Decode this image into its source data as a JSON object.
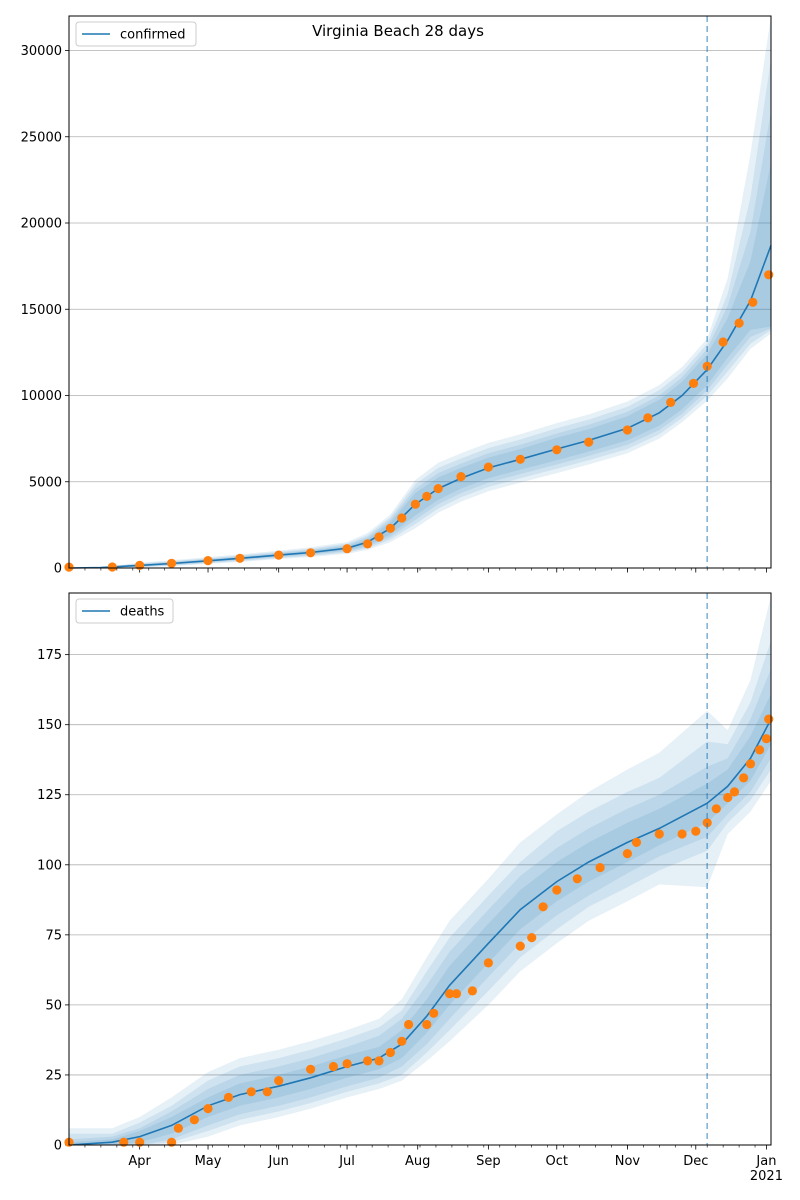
{
  "figure": {
    "title": "Virginia Beach 28 days",
    "colors": {
      "model_line": "#1f77b4",
      "observed": "#ff7f0e",
      "band": "#1f77b4",
      "grid": "#b0b0b0",
      "vline": "#1f77b4"
    }
  },
  "chart_data": [
    {
      "type": "line",
      "legend": "confirmed",
      "legend_position": "upper-left",
      "grid": "y",
      "x_axis": {
        "type": "date",
        "range": [
          "2020-03-01",
          "2021-01-03"
        ],
        "ticks": [
          {
            "date": "2020-04-01",
            "label": "Apr"
          },
          {
            "date": "2020-05-01",
            "label": "May"
          },
          {
            "date": "2020-06-01",
            "label": "Jun"
          },
          {
            "date": "2020-07-01",
            "label": "Jul"
          },
          {
            "date": "2020-08-01",
            "label": "Aug"
          },
          {
            "date": "2020-09-01",
            "label": "Sep"
          },
          {
            "date": "2020-10-01",
            "label": "Oct"
          },
          {
            "date": "2020-11-01",
            "label": "Nov"
          },
          {
            "date": "2020-12-01",
            "label": "Dec"
          },
          {
            "date": "2021-01-01",
            "label": "Jan\n2021"
          }
        ]
      },
      "ylim": [
        0,
        32000
      ],
      "yticks": [
        0,
        5000,
        10000,
        15000,
        20000,
        25000,
        30000
      ],
      "forecast_start": "2020-12-06",
      "model": {
        "x": [
          "2020-03-01",
          "2020-03-15",
          "2020-04-01",
          "2020-04-15",
          "2020-05-01",
          "2020-05-15",
          "2020-06-01",
          "2020-06-15",
          "2020-07-01",
          "2020-07-10",
          "2020-07-20",
          "2020-07-31",
          "2020-08-10",
          "2020-08-20",
          "2020-09-01",
          "2020-09-15",
          "2020-10-01",
          "2020-10-15",
          "2020-11-01",
          "2020-11-15",
          "2020-11-25",
          "2020-12-06",
          "2020-12-15",
          "2020-12-25",
          "2021-01-03"
        ],
        "y": [
          0,
          30,
          150,
          260,
          420,
          560,
          750,
          900,
          1150,
          1500,
          2300,
          3700,
          4600,
          5200,
          5800,
          6300,
          6900,
          7400,
          8100,
          9000,
          10000,
          11500,
          13200,
          15500,
          18700
        ],
        "bands": [
          {
            "lower": [
              0,
              20,
              100,
              200,
              360,
              490,
              670,
              810,
              1030,
              1320,
              1950,
              3050,
              3950,
              4600,
              5200,
              5700,
              6250,
              6750,
              7400,
              8250,
              9200,
              10600,
              12200,
              13800,
              14000
            ],
            "upper": [
              0,
              40,
              200,
              320,
              480,
              630,
              830,
              990,
              1270,
              1680,
              2650,
              4350,
              5250,
              5800,
              6400,
              6900,
              7550,
              8050,
              8800,
              9750,
              10800,
              12400,
              14500,
              17800,
              23500
            ]
          },
          {
            "lower": [
              0,
              15,
              80,
              170,
              320,
              450,
              620,
              760,
              970,
              1230,
              1800,
              2800,
              3700,
              4350,
              4950,
              5450,
              6000,
              6500,
              7150,
              8000,
              8950,
              10300,
              11800,
              13400,
              13900
            ],
            "upper": [
              0,
              45,
              230,
              360,
              520,
              680,
              880,
              1050,
              1340,
              1790,
              2800,
              4600,
              5500,
              6050,
              6650,
              7150,
              7800,
              8300,
              9050,
              10000,
              11050,
              12700,
              15200,
              19500,
              26500
            ]
          },
          {
            "lower": [
              0,
              10,
              60,
              140,
              280,
              400,
              570,
              700,
              900,
              1140,
              1650,
              2550,
              3450,
              4100,
              4700,
              5200,
              5750,
              6250,
              6900,
              7750,
              8700,
              10000,
              11400,
              13000,
              13800
            ],
            "upper": [
              0,
              50,
              260,
              400,
              570,
              730,
              940,
              1120,
              1420,
              1900,
              2950,
              4850,
              5800,
              6350,
              6950,
              7450,
              8100,
              8600,
              9350,
              10300,
              11350,
              13000,
              15900,
              21500,
              29500
            ]
          },
          {
            "lower": [
              0,
              5,
              40,
              110,
              240,
              350,
              520,
              640,
              830,
              1050,
              1500,
              2300,
              3200,
              3850,
              4450,
              4950,
              5500,
              6000,
              6650,
              7500,
              8450,
              9700,
              11000,
              12700,
              13600
            ],
            "upper": [
              0,
              60,
              300,
              450,
              630,
              790,
              1010,
              1200,
              1510,
              2030,
              3100,
              5100,
              6100,
              6650,
              7250,
              7750,
              8400,
              8900,
              9650,
              10600,
              11650,
              13300,
              16800,
              24000,
              32000
            ]
          }
        ]
      },
      "observed": {
        "x": [
          "2020-03-01",
          "2020-03-20",
          "2020-04-01",
          "2020-04-15",
          "2020-05-01",
          "2020-05-15",
          "2020-06-01",
          "2020-06-15",
          "2020-07-01",
          "2020-07-10",
          "2020-07-15",
          "2020-07-20",
          "2020-07-25",
          "2020-07-31",
          "2020-08-05",
          "2020-08-10",
          "2020-08-20",
          "2020-09-01",
          "2020-09-15",
          "2020-10-01",
          "2020-10-15",
          "2020-11-01",
          "2020-11-10",
          "2020-11-20",
          "2020-11-30",
          "2020-12-06",
          "2020-12-13",
          "2020-12-20",
          "2020-12-26",
          "2021-01-02"
        ],
        "y": [
          50,
          60,
          150,
          270,
          430,
          560,
          750,
          880,
          1120,
          1400,
          1800,
          2300,
          2900,
          3700,
          4150,
          4600,
          5300,
          5850,
          6300,
          6850,
          7300,
          8000,
          8700,
          9600,
          10700,
          11700,
          13100,
          14200,
          15400,
          17000
        ]
      }
    },
    {
      "type": "line",
      "legend": "deaths",
      "legend_position": "upper-left",
      "grid": "y",
      "x_axis": {
        "type": "date",
        "range": [
          "2020-03-01",
          "2021-01-03"
        ],
        "ticks": [
          {
            "date": "2020-04-01",
            "label": "Apr"
          },
          {
            "date": "2020-05-01",
            "label": "May"
          },
          {
            "date": "2020-06-01",
            "label": "Jun"
          },
          {
            "date": "2020-07-01",
            "label": "Jul"
          },
          {
            "date": "2020-08-01",
            "label": "Aug"
          },
          {
            "date": "2020-09-01",
            "label": "Sep"
          },
          {
            "date": "2020-10-01",
            "label": "Oct"
          },
          {
            "date": "2020-11-01",
            "label": "Nov"
          },
          {
            "date": "2020-12-01",
            "label": "Dec"
          },
          {
            "date": "2021-01-01",
            "label": "Jan\n2021"
          }
        ]
      },
      "ylim": [
        0,
        197
      ],
      "yticks": [
        0,
        25,
        50,
        75,
        100,
        125,
        150,
        175
      ],
      "forecast_start": "2020-12-06",
      "model": {
        "x": [
          "2020-03-01",
          "2020-03-20",
          "2020-04-01",
          "2020-04-15",
          "2020-05-01",
          "2020-05-15",
          "2020-06-01",
          "2020-06-15",
          "2020-07-01",
          "2020-07-15",
          "2020-07-25",
          "2020-08-05",
          "2020-08-15",
          "2020-09-01",
          "2020-09-15",
          "2020-10-01",
          "2020-10-15",
          "2020-11-01",
          "2020-11-15",
          "2020-12-06",
          "2020-12-15",
          "2020-12-25",
          "2021-01-03"
        ],
        "y": [
          0,
          1,
          3,
          7,
          14,
          18,
          21,
          24,
          28,
          31,
          36,
          46,
          57,
          72,
          84,
          94,
          101,
          108,
          113,
          122,
          128,
          138,
          152
        ],
        "bands": [
          {
            "lower": [
              0,
              0,
              1,
              4,
              10,
              14,
              17,
              20,
              24,
              27,
              31,
              40,
              50,
              65,
              77,
              87,
              94,
              101,
              107,
              115,
              122,
              130,
              143
            ],
            "upper": [
              1,
              2,
              5,
              10,
              17,
              22,
              25,
              28,
              32,
              35,
              41,
              52,
              64,
              79,
              91,
              101,
              108,
              115,
              120,
              129,
              134,
              146,
              161
            ]
          },
          {
            "lower": [
              0,
              0,
              0,
              2,
              7,
              11,
              14,
              17,
              21,
              24,
              28,
              36,
              45,
              60,
              72,
              82,
              89,
              97,
              103,
              110,
              118,
              126,
              138
            ],
            "upper": [
              2,
              3,
              6,
              12,
              20,
              25,
              28,
              31,
              35,
              39,
              45,
              57,
              69,
              84,
              96,
              106,
              113,
              120,
              125,
              135,
              138,
              152,
              170
            ]
          },
          {
            "lower": [
              0,
              0,
              0,
              1,
              5,
              9,
              12,
              15,
              19,
              22,
              25,
              33,
              41,
              55,
              67,
              77,
              85,
              92,
              98,
              105,
              115,
              123,
              134
            ],
            "upper": [
              4,
              4,
              8,
              14,
              23,
              28,
              31,
              34,
              38,
              42,
              48,
              62,
              74,
              89,
              101,
              112,
              119,
              126,
              131,
              144,
              143,
              158,
              180
            ]
          },
          {
            "lower": [
              0,
              0,
              0,
              0,
              3,
              7,
              10,
              13,
              17,
              20,
              23,
              30,
              37,
              50,
              62,
              72,
              80,
              87,
              93,
              92,
              111,
              119,
              130
            ],
            "upper": [
              6,
              6,
              10,
              17,
              26,
              31,
              34,
              37,
              41,
              45,
              52,
              67,
              80,
              95,
              108,
              118,
              126,
              134,
              140,
              155,
              148,
              166,
              196
            ]
          }
        ]
      },
      "observed": {
        "x": [
          "2020-03-01",
          "2020-03-25",
          "2020-04-01",
          "2020-04-15",
          "2020-04-18",
          "2020-04-25",
          "2020-05-01",
          "2020-05-10",
          "2020-05-20",
          "2020-05-27",
          "2020-06-01",
          "2020-06-15",
          "2020-06-25",
          "2020-07-01",
          "2020-07-10",
          "2020-07-15",
          "2020-07-20",
          "2020-07-25",
          "2020-07-28",
          "2020-08-05",
          "2020-08-08",
          "2020-08-15",
          "2020-08-18",
          "2020-08-25",
          "2020-09-01",
          "2020-09-15",
          "2020-09-20",
          "2020-09-25",
          "2020-10-01",
          "2020-10-10",
          "2020-10-20",
          "2020-11-01",
          "2020-11-05",
          "2020-11-15",
          "2020-11-25",
          "2020-12-01",
          "2020-12-06",
          "2020-12-10",
          "2020-12-15",
          "2020-12-18",
          "2020-12-22",
          "2020-12-25",
          "2020-12-29",
          "2021-01-01",
          "2021-01-02"
        ],
        "y": [
          1,
          1,
          1,
          1,
          6,
          9,
          13,
          17,
          19,
          19,
          23,
          27,
          28,
          29,
          30,
          30,
          33,
          37,
          43,
          43,
          47,
          54,
          54,
          55,
          65,
          71,
          74,
          85,
          91,
          95,
          99,
          104,
          108,
          111,
          111,
          112,
          115,
          120,
          124,
          126,
          131,
          136,
          141,
          145,
          152
        ]
      }
    }
  ]
}
